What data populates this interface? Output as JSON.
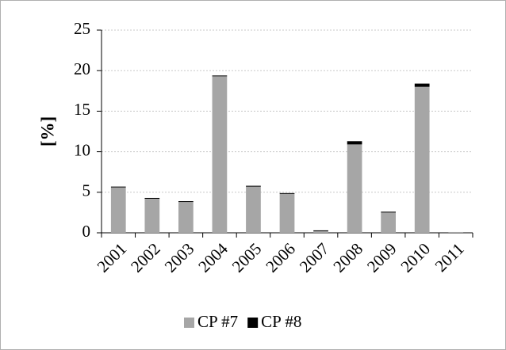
{
  "chart_data": {
    "type": "bar",
    "stacked": true,
    "ylabel": "[%]",
    "categories": [
      "2001",
      "2002",
      "2003",
      "2004",
      "2005",
      "2006",
      "2007",
      "2008",
      "2009",
      "2010",
      "2011"
    ],
    "series": [
      {
        "name": "CP #7",
        "color": "#a6a6a6",
        "values": [
          5.6,
          4.2,
          3.8,
          19.3,
          5.7,
          4.8,
          0.2,
          10.9,
          2.5,
          18.0,
          0.1
        ]
      },
      {
        "name": "CP #8",
        "color": "#000000",
        "values": [
          0.1,
          0.1,
          0.1,
          0.1,
          0.1,
          0.1,
          0.1,
          0.4,
          0.1,
          0.4,
          0
        ]
      }
    ],
    "ylim": [
      0,
      25
    ],
    "yticks": [
      0,
      5,
      10,
      15,
      20,
      25
    ],
    "grid": true,
    "legend": "bottom"
  }
}
